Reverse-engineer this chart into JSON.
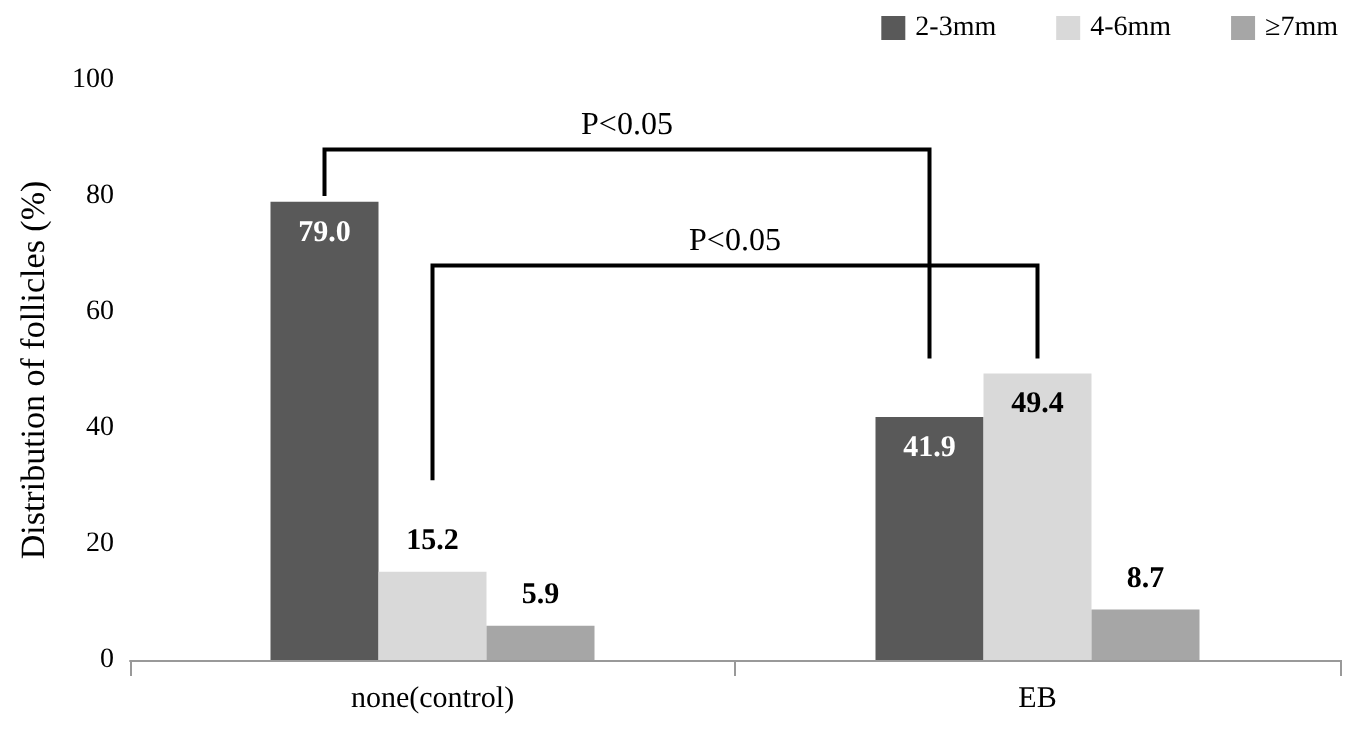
{
  "chart_data": {
    "type": "bar",
    "ylabel": "Distribution of follicles (%)",
    "categories": [
      "none(control)",
      "EB"
    ],
    "series": [
      {
        "name": "2-3mm",
        "color": "#595959",
        "values": [
          79.0,
          41.9
        ],
        "value_labels": [
          "79.0",
          "41.9"
        ]
      },
      {
        "name": "4-6mm",
        "color": "#d9d9d9",
        "values": [
          15.2,
          49.4
        ],
        "value_labels": [
          "15.2",
          "49.4"
        ]
      },
      {
        "name": "≥7mm",
        "color": "#a6a6a6",
        "values": [
          5.9,
          8.7
        ],
        "value_labels": [
          "5.9",
          "8.7"
        ]
      }
    ],
    "ylim": [
      0,
      100
    ],
    "yticks": [
      0,
      20,
      40,
      60,
      80,
      100
    ],
    "grid": false,
    "legend": "top right",
    "annotations": [
      "P<0.05",
      "P<0.05"
    ]
  }
}
